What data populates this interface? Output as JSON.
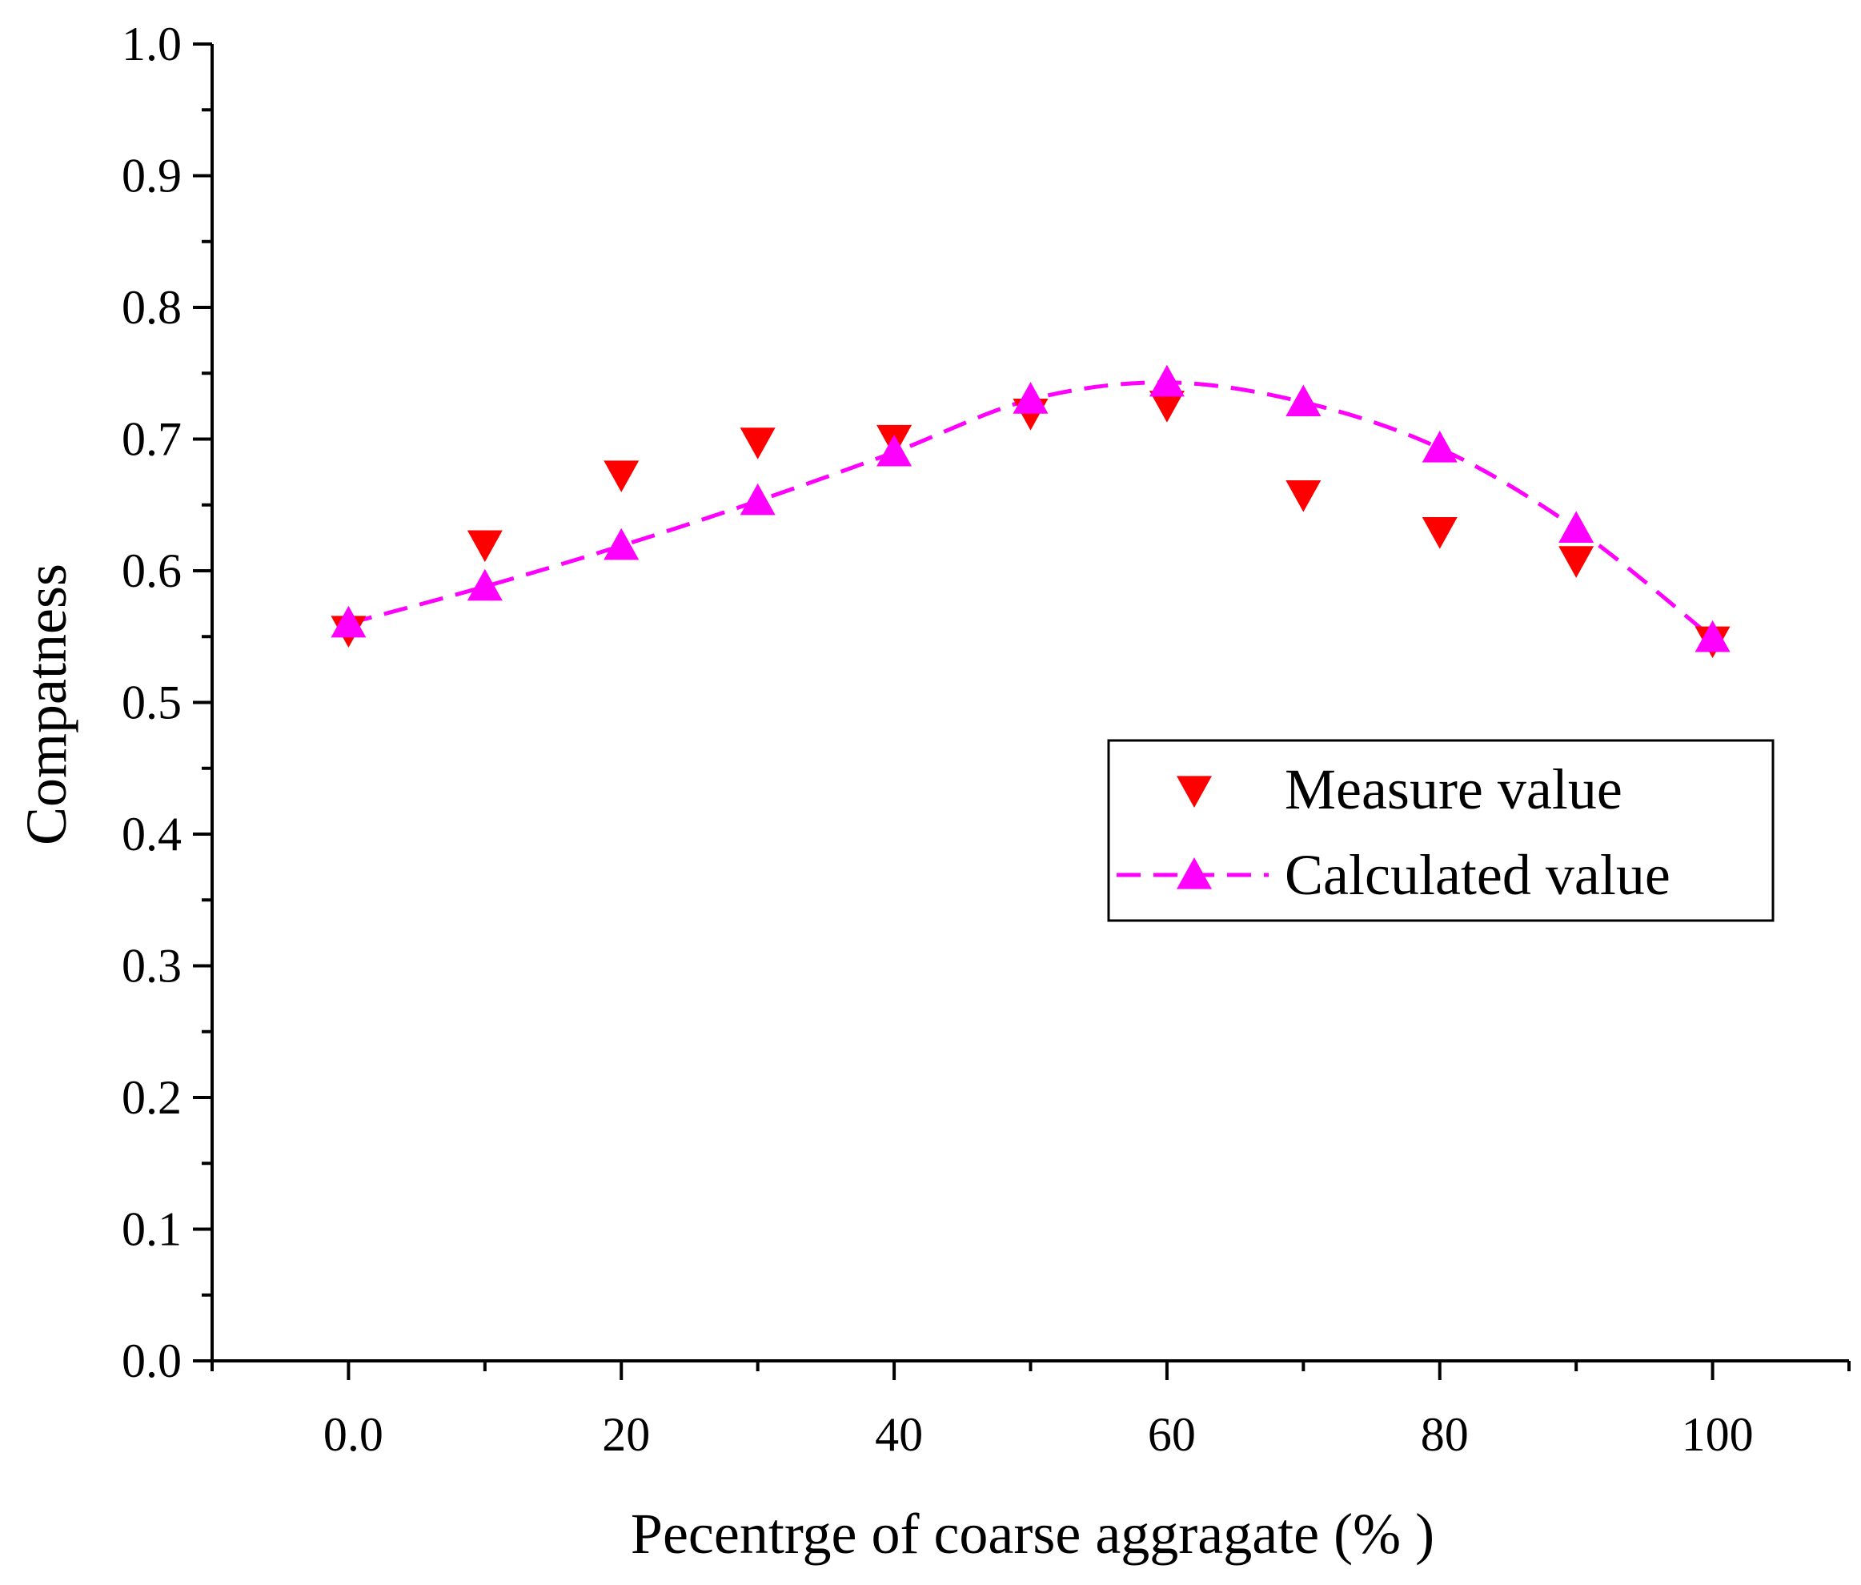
{
  "chart_data": {
    "type": "scatter",
    "title": "",
    "xlabel": "Pecentrge of coarse aggragate (% )",
    "ylabel": "Compatness",
    "xlim": [
      -10,
      110
    ],
    "ylim": [
      0.0,
      1.0
    ],
    "x_ticks": [
      0,
      20,
      40,
      60,
      80,
      100
    ],
    "x_tick_labels": [
      "0.0",
      "20",
      "40",
      "60",
      "80",
      "100"
    ],
    "y_ticks": [
      0.0,
      0.1,
      0.2,
      0.3,
      0.4,
      0.5,
      0.6,
      0.7,
      0.8,
      0.9,
      1.0
    ],
    "y_tick_labels": [
      "0.0",
      "0.1",
      "0.2",
      "0.3",
      "0.4",
      "0.5",
      "0.6",
      "0.7",
      "0.8",
      "0.9",
      "1.0"
    ],
    "grid": false,
    "legend_position": "middle-right",
    "series": [
      {
        "name": "Measure value",
        "marker": "triangle-down",
        "line": "none",
        "color": "#ff0000",
        "x": [
          0,
          10,
          20,
          30,
          40,
          50,
          60,
          70,
          80,
          90,
          100
        ],
        "y": [
          0.555,
          0.62,
          0.673,
          0.698,
          0.7,
          0.72,
          0.726,
          0.658,
          0.63,
          0.608,
          0.547
        ]
      },
      {
        "name": "Calculated value",
        "marker": "triangle-up",
        "line": "dashed",
        "color": "#ff00ff",
        "x": [
          0,
          10,
          20,
          30,
          40,
          50,
          60,
          70,
          80,
          90,
          100
        ],
        "y": [
          0.56,
          0.588,
          0.619,
          0.653,
          0.69,
          0.73,
          0.743,
          0.728,
          0.693,
          0.632,
          0.549
        ]
      }
    ]
  }
}
